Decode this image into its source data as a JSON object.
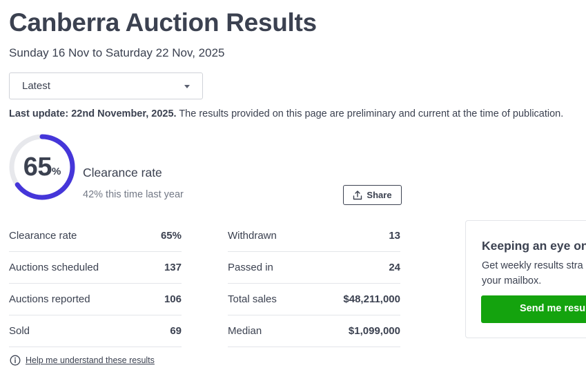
{
  "page": {
    "title": "Canberra Auction Results",
    "date_range": "Sunday 16 Nov to Saturday 22 Nov, 2025"
  },
  "period_select": {
    "value": "Latest"
  },
  "update": {
    "label": "Last update: 22nd November, 2025.",
    "text": " The results provided on this page are preliminary and current at the time of publication."
  },
  "summary": {
    "rate": "65",
    "rate_value": 0.65,
    "pct_sign": "%",
    "label": "Clearance rate",
    "last_year": "42% this time last year",
    "ring_color": "#4536d9",
    "ring_track_color": "#e7e8ec"
  },
  "share": {
    "label": "Share"
  },
  "stats_left": [
    {
      "label": "Clearance rate",
      "value": "65%"
    },
    {
      "label": "Auctions scheduled",
      "value": "137"
    },
    {
      "label": "Auctions reported",
      "value": "106"
    },
    {
      "label": "Sold",
      "value": "69"
    }
  ],
  "stats_right": [
    {
      "label": "Withdrawn",
      "value": "13"
    },
    {
      "label": "Passed in",
      "value": "24"
    },
    {
      "label": "Total sales",
      "value": "$48,211,000"
    },
    {
      "label": "Median",
      "value": "$1,099,000"
    }
  ],
  "help": {
    "link": "Help me understand these results"
  },
  "newsletter": {
    "title": "Keeping an eye on",
    "line1": "Get weekly results stra",
    "line2": "your mailbox.",
    "button": "Send me resul",
    "button_color": "#14a30e"
  }
}
